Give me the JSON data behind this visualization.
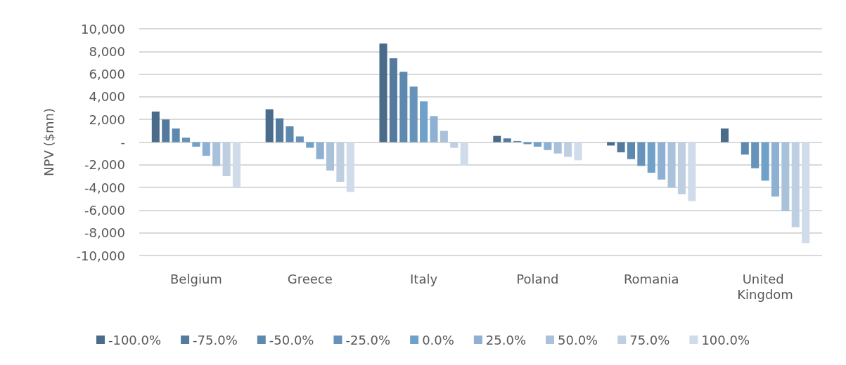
{
  "chart_data": {
    "type": "bar",
    "ylabel": "NPV ($mn)",
    "categories": [
      "Belgium",
      "Greece",
      "Italy",
      "Poland",
      "Romania",
      "United Kingdom"
    ],
    "series": [
      {
        "name": "-100.0%",
        "color": "#4a6b8a",
        "values": [
          2700,
          2900,
          8700,
          550,
          -300,
          1200
        ]
      },
      {
        "name": "-75.0%",
        "color": "#547b9e",
        "values": [
          2000,
          2100,
          7400,
          330,
          -900,
          null
        ]
      },
      {
        "name": "-50.0%",
        "color": "#5e89ae",
        "values": [
          1200,
          1400,
          6200,
          100,
          -1500,
          -1100
        ]
      },
      {
        "name": "-25.0%",
        "color": "#6793ba",
        "values": [
          400,
          500,
          4900,
          -180,
          -2100,
          -2300
        ]
      },
      {
        "name": "0.0%",
        "color": "#6fa1c9",
        "values": [
          -400,
          -500,
          3600,
          -400,
          -2700,
          -3400
        ]
      },
      {
        "name": "25.0%",
        "color": "#8eb0d3",
        "values": [
          -1200,
          -1500,
          2300,
          -700,
          -3300,
          -4800
        ]
      },
      {
        "name": "50.0%",
        "color": "#aac1da",
        "values": [
          -2100,
          -2500,
          1000,
          -1000,
          -4000,
          -6100
        ]
      },
      {
        "name": "75.0%",
        "color": "#bfcfe2",
        "values": [
          -3000,
          -3500,
          -500,
          -1300,
          -4600,
          -7500
        ]
      },
      {
        "name": "100.0%",
        "color": "#d1dcea",
        "values": [
          -4000,
          -4400,
          -2000,
          -1600,
          -5200,
          -8900
        ]
      }
    ],
    "ylim": [
      -10000,
      10000
    ],
    "yticks": [
      {
        "value": -10000,
        "label": "-10,000"
      },
      {
        "value": -8000,
        "label": "-8,000"
      },
      {
        "value": -6000,
        "label": "-6,000"
      },
      {
        "value": -4000,
        "label": "-4,000"
      },
      {
        "value": -2000,
        "label": "-2,000"
      },
      {
        "value": 0,
        "label": "-"
      },
      {
        "value": 2000,
        "label": "2,000"
      },
      {
        "value": 4000,
        "label": "4,000"
      },
      {
        "value": 6000,
        "label": "6,000"
      },
      {
        "value": 8000,
        "label": "8,000"
      },
      {
        "value": 10000,
        "label": "10,000"
      }
    ],
    "grid": "y",
    "legend": "bottom"
  }
}
